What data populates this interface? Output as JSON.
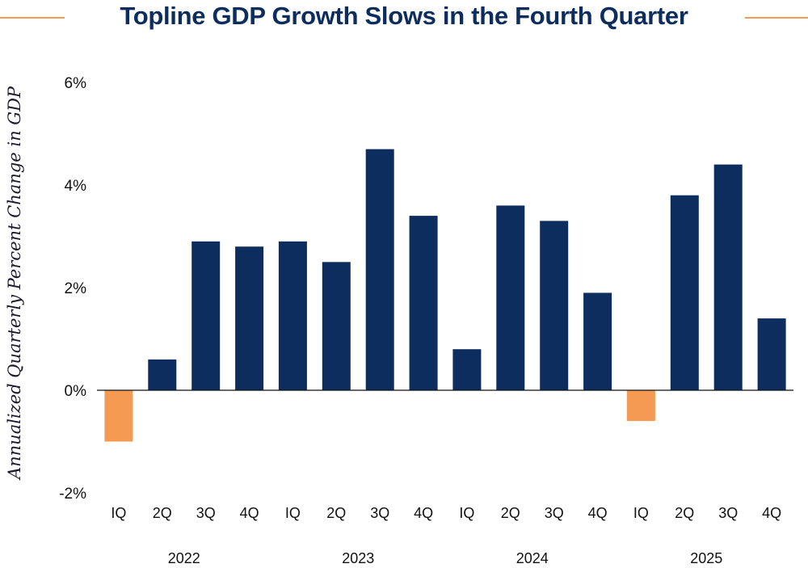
{
  "chart_data": {
    "type": "bar",
    "title": "Topline GDP Growth Slows in the Fourth Quarter",
    "xlabel": "",
    "ylabel": "Annualized Quarterly Percent Change in GDP",
    "ylim": [
      -2,
      6
    ],
    "yticks": [
      {
        "value": -2,
        "label": "-2%"
      },
      {
        "value": 0,
        "label": "0%"
      },
      {
        "value": 2,
        "label": "2%"
      },
      {
        "value": 4,
        "label": "4%"
      },
      {
        "value": 6,
        "label": "6%"
      }
    ],
    "categories": [
      "IQ",
      "2Q",
      "3Q",
      "4Q",
      "IQ",
      "2Q",
      "3Q",
      "4Q",
      "IQ",
      "2Q",
      "3Q",
      "4Q",
      "IQ",
      "2Q",
      "3Q",
      "4Q"
    ],
    "years": [
      "2022",
      "2023",
      "2024",
      "2025"
    ],
    "values": [
      -1.0,
      0.6,
      2.9,
      2.8,
      2.9,
      2.5,
      4.7,
      3.4,
      0.8,
      3.6,
      3.3,
      1.9,
      -0.6,
      3.8,
      4.4,
      1.4
    ],
    "colors": {
      "positive": "#0d2d5e",
      "negative": "#f59a52",
      "axis": "#111111",
      "text": "#111111"
    },
    "grid": false
  }
}
